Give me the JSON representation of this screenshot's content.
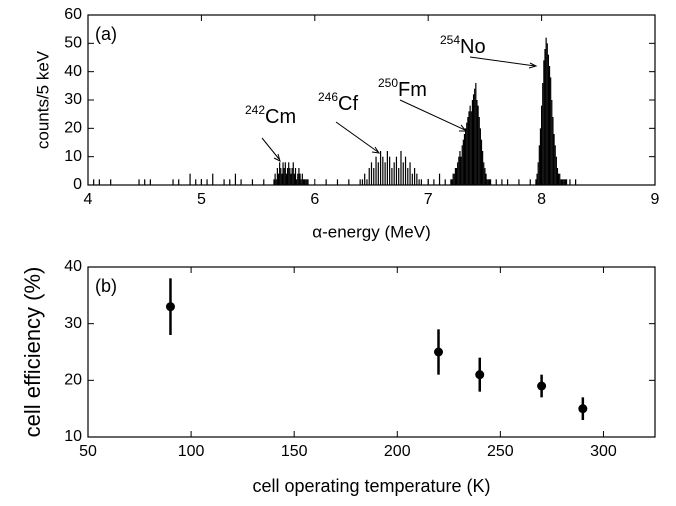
{
  "chart_data": [
    {
      "type": "bar",
      "panel_label": "(a)",
      "x_label": "α-energy (MeV)",
      "y_label": "counts/5 keV",
      "xlim": [
        4,
        9
      ],
      "xticks": [
        4,
        5,
        6,
        7,
        8,
        9
      ],
      "ylim": [
        0,
        60
      ],
      "yticks": [
        0,
        10,
        20,
        30,
        40,
        50,
        60
      ],
      "color": "#000000",
      "x": [
        4.05,
        4.1,
        4.2,
        4.45,
        4.5,
        4.55,
        4.75,
        4.8,
        4.9,
        4.95,
        5.0,
        5.05,
        5.1,
        5.2,
        5.25,
        5.3,
        5.35,
        5.45,
        5.55,
        5.64,
        5.65,
        5.66,
        5.67,
        5.68,
        5.69,
        5.7,
        5.71,
        5.72,
        5.73,
        5.74,
        5.75,
        5.76,
        5.77,
        5.78,
        5.79,
        5.8,
        5.81,
        5.82,
        5.83,
        5.84,
        5.85,
        5.86,
        5.87,
        5.88,
        5.89,
        5.9,
        5.91,
        5.92,
        5.93,
        5.94,
        6.1,
        6.2,
        6.3,
        6.4,
        6.42,
        6.44,
        6.46,
        6.48,
        6.5,
        6.52,
        6.54,
        6.56,
        6.58,
        6.6,
        6.62,
        6.64,
        6.66,
        6.68,
        6.7,
        6.72,
        6.74,
        6.76,
        6.78,
        6.8,
        6.82,
        6.84,
        6.86,
        6.88,
        6.9,
        6.92,
        6.94,
        7.0,
        7.05,
        7.1,
        7.15,
        7.2,
        7.21,
        7.22,
        7.23,
        7.24,
        7.25,
        7.26,
        7.27,
        7.28,
        7.29,
        7.3,
        7.31,
        7.32,
        7.33,
        7.34,
        7.35,
        7.36,
        7.37,
        7.38,
        7.39,
        7.4,
        7.41,
        7.42,
        7.43,
        7.44,
        7.45,
        7.46,
        7.47,
        7.48,
        7.49,
        7.5,
        7.51,
        7.52,
        7.53,
        7.54,
        7.55,
        7.6,
        7.65,
        7.7,
        7.8,
        7.9,
        7.95,
        7.96,
        7.97,
        7.98,
        7.99,
        8.0,
        8.01,
        8.02,
        8.03,
        8.04,
        8.05,
        8.06,
        8.07,
        8.08,
        8.09,
        8.1,
        8.11,
        8.12,
        8.13,
        8.14,
        8.15,
        8.16,
        8.17,
        8.18,
        8.19,
        8.2,
        8.21,
        8.22,
        8.25,
        8.3
      ],
      "values": [
        2,
        2,
        2,
        2,
        2,
        2,
        2,
        2,
        4,
        2,
        2,
        2,
        4,
        2,
        2,
        4,
        2,
        2,
        2,
        2,
        4,
        2,
        6,
        4,
        8,
        6,
        4,
        8,
        6,
        8,
        4,
        6,
        8,
        6,
        4,
        6,
        8,
        4,
        6,
        2,
        4,
        6,
        4,
        2,
        4,
        2,
        2,
        2,
        2,
        2,
        2,
        2,
        2,
        2,
        2,
        4,
        2,
        6,
        8,
        6,
        10,
        8,
        12,
        10,
        8,
        12,
        10,
        6,
        8,
        10,
        6,
        12,
        8,
        10,
        6,
        8,
        4,
        6,
        4,
        2,
        2,
        2,
        2,
        4,
        2,
        2,
        2,
        4,
        4,
        6,
        6,
        8,
        10,
        12,
        10,
        14,
        16,
        18,
        20,
        22,
        24,
        26,
        28,
        26,
        30,
        32,
        34,
        36,
        30,
        28,
        24,
        20,
        16,
        12,
        8,
        6,
        4,
        2,
        2,
        2,
        2,
        2,
        2,
        2,
        2,
        2,
        2,
        4,
        8,
        14,
        20,
        28,
        36,
        44,
        48,
        52,
        50,
        46,
        42,
        38,
        30,
        24,
        18,
        14,
        10,
        6,
        4,
        4,
        2,
        2,
        2,
        2,
        2,
        2,
        2,
        2
      ],
      "annotations": [
        {
          "mass": "242",
          "element": "Cm"
        },
        {
          "mass": "246",
          "element": "Cf"
        },
        {
          "mass": "250",
          "element": "Fm"
        },
        {
          "mass": "254",
          "element": "No"
        }
      ]
    },
    {
      "type": "errorbar",
      "panel_label": "(b)",
      "x_label": "cell operating temperature (K)",
      "y_label": "cell efficiency (%)",
      "xlim": [
        50,
        325
      ],
      "xticks": [
        50,
        100,
        150,
        200,
        250,
        300
      ],
      "ylim": [
        10,
        40
      ],
      "yticks": [
        10,
        20,
        30,
        40
      ],
      "color": "#000000",
      "x": [
        90,
        220,
        240,
        270,
        290
      ],
      "values": [
        33,
        25,
        21,
        19,
        15
      ],
      "errors": [
        5,
        4,
        3,
        2,
        2
      ]
    }
  ]
}
